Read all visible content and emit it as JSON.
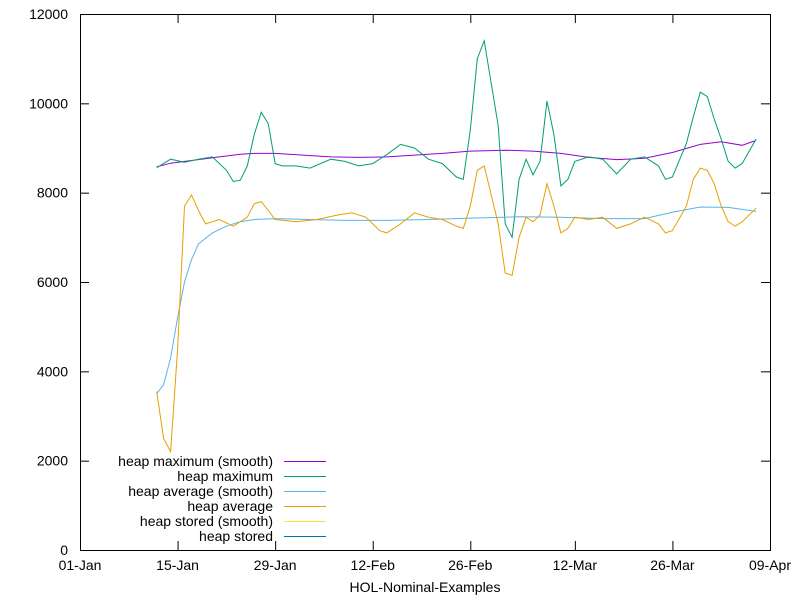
{
  "chart_data": {
    "type": "line",
    "title": "",
    "xlabel": "HOL-Nominal-Examples",
    "ylabel": "",
    "x_ticks": [
      "01-Jan",
      "15-Jan",
      "29-Jan",
      "12-Feb",
      "26-Feb",
      "12-Mar",
      "26-Mar",
      "09-Apr"
    ],
    "y_ticks": [
      "0",
      "2000",
      "4000",
      "6000",
      "8000",
      "10000",
      "12000"
    ],
    "xlim": [
      "01-Jan",
      "09-Apr"
    ],
    "ylim": [
      0,
      12000
    ],
    "grid": false,
    "legend_position": "bottom-left",
    "series": [
      {
        "name": "heap maximum (smooth)",
        "color": "#9400d3",
        "points": [
          [
            "12-Jan",
            8580
          ],
          [
            "14-Jan",
            8660
          ],
          [
            "16-Jan",
            8700
          ],
          [
            "18-Jan",
            8740
          ],
          [
            "20-Jan",
            8780
          ],
          [
            "22-Jan",
            8820
          ],
          [
            "24-Jan",
            8860
          ],
          [
            "26-Jan",
            8880
          ],
          [
            "29-Jan",
            8880
          ],
          [
            "02-Feb",
            8840
          ],
          [
            "06-Feb",
            8800
          ],
          [
            "10-Feb",
            8790
          ],
          [
            "14-Feb",
            8800
          ],
          [
            "18-Feb",
            8840
          ],
          [
            "22-Feb",
            8880
          ],
          [
            "26-Feb",
            8930
          ],
          [
            "02-Mar",
            8950
          ],
          [
            "06-Mar",
            8930
          ],
          [
            "10-Mar",
            8880
          ],
          [
            "14-Mar",
            8790
          ],
          [
            "18-Mar",
            8740
          ],
          [
            "22-Mar",
            8770
          ],
          [
            "26-Mar",
            8900
          ],
          [
            "30-Mar",
            9080
          ],
          [
            "02-Apr",
            9140
          ],
          [
            "05-Apr",
            9060
          ],
          [
            "07-Apr",
            9170
          ]
        ]
      },
      {
        "name": "heap maximum",
        "color": "#009e73",
        "points": [
          [
            "12-Jan",
            8560
          ],
          [
            "14-Jan",
            8750
          ],
          [
            "16-Jan",
            8680
          ],
          [
            "18-Jan",
            8750
          ],
          [
            "20-Jan",
            8800
          ],
          [
            "22-Jan",
            8500
          ],
          [
            "23-Jan",
            8250
          ],
          [
            "24-Jan",
            8280
          ],
          [
            "25-Jan",
            8600
          ],
          [
            "26-Jan",
            9300
          ],
          [
            "27-Jan",
            9800
          ],
          [
            "28-Jan",
            9550
          ],
          [
            "29-Jan",
            8650
          ],
          [
            "30-Jan",
            8600
          ],
          [
            "01-Feb",
            8600
          ],
          [
            "03-Feb",
            8550
          ],
          [
            "06-Feb",
            8750
          ],
          [
            "08-Feb",
            8700
          ],
          [
            "10-Feb",
            8600
          ],
          [
            "12-Feb",
            8650
          ],
          [
            "14-Feb",
            8850
          ],
          [
            "16-Feb",
            9080
          ],
          [
            "18-Feb",
            9000
          ],
          [
            "20-Feb",
            8750
          ],
          [
            "22-Feb",
            8650
          ],
          [
            "24-Feb",
            8350
          ],
          [
            "25-Feb",
            8300
          ],
          [
            "26-Feb",
            9400
          ],
          [
            "27-Feb",
            11000
          ],
          [
            "28-Feb",
            11400
          ],
          [
            "01-Mar",
            9500
          ],
          [
            "02-Mar",
            7300
          ],
          [
            "03-Mar",
            7000
          ],
          [
            "04-Mar",
            8300
          ],
          [
            "05-Mar",
            8750
          ],
          [
            "06-Mar",
            8400
          ],
          [
            "07-Mar",
            8700
          ],
          [
            "08-Mar",
            10050
          ],
          [
            "09-Mar",
            9300
          ],
          [
            "10-Mar",
            8150
          ],
          [
            "11-Mar",
            8300
          ],
          [
            "12-Mar",
            8700
          ],
          [
            "14-Mar",
            8800
          ],
          [
            "16-Mar",
            8750
          ],
          [
            "18-Mar",
            8420
          ],
          [
            "20-Mar",
            8750
          ],
          [
            "22-Mar",
            8800
          ],
          [
            "24-Mar",
            8600
          ],
          [
            "25-Mar",
            8300
          ],
          [
            "26-Mar",
            8350
          ],
          [
            "28-Mar",
            9100
          ],
          [
            "29-Mar",
            9700
          ],
          [
            "30-Mar",
            10250
          ],
          [
            "31-Mar",
            10150
          ],
          [
            "01-Apr",
            9650
          ],
          [
            "02-Apr",
            9200
          ],
          [
            "03-Apr",
            8700
          ],
          [
            "04-Apr",
            8550
          ],
          [
            "05-Apr",
            8650
          ],
          [
            "07-Apr",
            9200
          ]
        ]
      },
      {
        "name": "heap average (smooth)",
        "color": "#56b4e9",
        "points": [
          [
            "12-Jan",
            3500
          ],
          [
            "13-Jan",
            3700
          ],
          [
            "14-Jan",
            4300
          ],
          [
            "15-Jan",
            5200
          ],
          [
            "16-Jan",
            6000
          ],
          [
            "17-Jan",
            6500
          ],
          [
            "18-Jan",
            6850
          ],
          [
            "20-Jan",
            7100
          ],
          [
            "22-Jan",
            7250
          ],
          [
            "24-Jan",
            7350
          ],
          [
            "26-Jan",
            7400
          ],
          [
            "29-Jan",
            7420
          ],
          [
            "03-Feb",
            7400
          ],
          [
            "08-Feb",
            7380
          ],
          [
            "14-Feb",
            7380
          ],
          [
            "20-Feb",
            7400
          ],
          [
            "26-Feb",
            7430
          ],
          [
            "04-Mar",
            7460
          ],
          [
            "10-Mar",
            7450
          ],
          [
            "16-Mar",
            7420
          ],
          [
            "22-Mar",
            7420
          ],
          [
            "26-Mar",
            7560
          ],
          [
            "30-Mar",
            7680
          ],
          [
            "03-Apr",
            7670
          ],
          [
            "07-Apr",
            7580
          ]
        ]
      },
      {
        "name": "heap average",
        "color": "#e69f00",
        "points": [
          [
            "12-Jan",
            3550
          ],
          [
            "13-Jan",
            2500
          ],
          [
            "14-Jan",
            2200
          ],
          [
            "15-Jan",
            4500
          ],
          [
            "16-Jan",
            7700
          ],
          [
            "17-Jan",
            7950
          ],
          [
            "18-Jan",
            7600
          ],
          [
            "19-Jan",
            7300
          ],
          [
            "21-Jan",
            7400
          ],
          [
            "23-Jan",
            7250
          ],
          [
            "25-Jan",
            7450
          ],
          [
            "26-Jan",
            7750
          ],
          [
            "27-Jan",
            7800
          ],
          [
            "28-Jan",
            7600
          ],
          [
            "29-Jan",
            7400
          ],
          [
            "01-Feb",
            7350
          ],
          [
            "04-Feb",
            7400
          ],
          [
            "07-Feb",
            7500
          ],
          [
            "09-Feb",
            7550
          ],
          [
            "11-Feb",
            7450
          ],
          [
            "13-Feb",
            7150
          ],
          [
            "14-Feb",
            7100
          ],
          [
            "16-Feb",
            7300
          ],
          [
            "18-Feb",
            7550
          ],
          [
            "20-Feb",
            7450
          ],
          [
            "22-Feb",
            7400
          ],
          [
            "24-Feb",
            7250
          ],
          [
            "25-Feb",
            7200
          ],
          [
            "26-Feb",
            7700
          ],
          [
            "27-Feb",
            8500
          ],
          [
            "28-Feb",
            8600
          ],
          [
            "01-Mar",
            7300
          ],
          [
            "02-Mar",
            6200
          ],
          [
            "03-Mar",
            6150
          ],
          [
            "04-Mar",
            7000
          ],
          [
            "05-Mar",
            7450
          ],
          [
            "06-Mar",
            7350
          ],
          [
            "07-Mar",
            7500
          ],
          [
            "08-Mar",
            8200
          ],
          [
            "09-Mar",
            7700
          ],
          [
            "10-Mar",
            7100
          ],
          [
            "11-Mar",
            7200
          ],
          [
            "12-Mar",
            7450
          ],
          [
            "14-Mar",
            7400
          ],
          [
            "16-Mar",
            7450
          ],
          [
            "18-Mar",
            7200
          ],
          [
            "20-Mar",
            7300
          ],
          [
            "22-Mar",
            7450
          ],
          [
            "24-Mar",
            7300
          ],
          [
            "25-Mar",
            7100
          ],
          [
            "26-Mar",
            7150
          ],
          [
            "28-Mar",
            7700
          ],
          [
            "29-Mar",
            8300
          ],
          [
            "30-Mar",
            8550
          ],
          [
            "31-Mar",
            8500
          ],
          [
            "01-Apr",
            8200
          ],
          [
            "02-Apr",
            7700
          ],
          [
            "03-Apr",
            7350
          ],
          [
            "04-Apr",
            7250
          ],
          [
            "05-Apr",
            7350
          ],
          [
            "07-Apr",
            7650
          ]
        ]
      },
      {
        "name": "heap stored (smooth)",
        "color": "#f0e442",
        "points": []
      },
      {
        "name": "heap stored",
        "color": "#0072b2",
        "points": []
      }
    ]
  }
}
